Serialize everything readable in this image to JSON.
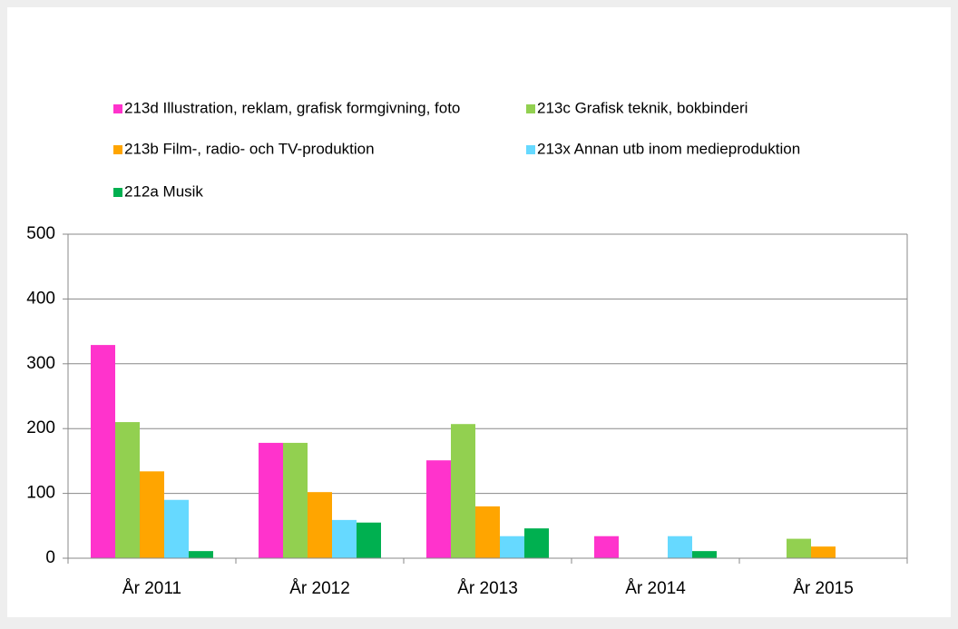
{
  "chart_data": {
    "type": "bar",
    "categories": [
      "År 2011",
      "År 2012",
      "År 2013",
      "År 2014",
      "År 2015"
    ],
    "series": [
      {
        "name": "213d Illustration, reklam, grafisk formgivning, foto",
        "color": "#ff33cc",
        "values": [
          329,
          178,
          151,
          34,
          0
        ]
      },
      {
        "name": "213c Grafisk teknik, bokbinderi",
        "color": "#92d050",
        "values": [
          210,
          178,
          207,
          0,
          30
        ]
      },
      {
        "name": "213b Film-, radio- och TV-produktion",
        "color": "#ffa500",
        "values": [
          134,
          102,
          80,
          0,
          18
        ]
      },
      {
        "name": "213x Annan utb inom medieproduktion",
        "color": "#66d9ff",
        "values": [
          90,
          59,
          34,
          34,
          0
        ]
      },
      {
        "name": "212a Musik",
        "color": "#00b050",
        "values": [
          11,
          55,
          46,
          11,
          0
        ]
      }
    ],
    "ylim": [
      0,
      500
    ],
    "yticks": [
      0,
      100,
      200,
      300,
      400,
      500
    ],
    "grid": true
  }
}
